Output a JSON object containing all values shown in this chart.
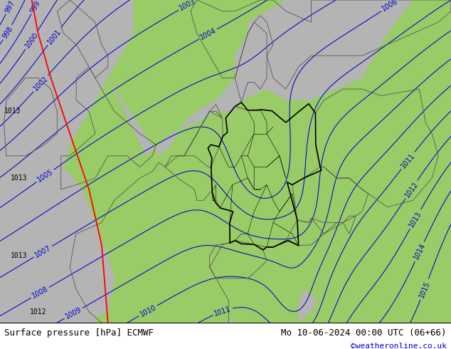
{
  "title_left": "Surface pressure [hPa] ECMWF",
  "title_right": "Mo 10-06-2024 00:00 UTC (06+66)",
  "credit": "©weatheronline.co.uk",
  "credit_color": "#0000cc",
  "land_green": "#99cc66",
  "sea_gray": "#b4b4b4",
  "contour_color": "#0000cc",
  "border_color_main": "#000000",
  "border_color_neighbor": "#555555",
  "bottom_bar_color": "#ffffff",
  "bottom_text_color": "#000000",
  "fig_width": 6.34,
  "fig_height": 4.9,
  "dpi": 100,
  "label_fontsize": 7,
  "title_fontsize": 9,
  "credit_fontsize": 8
}
